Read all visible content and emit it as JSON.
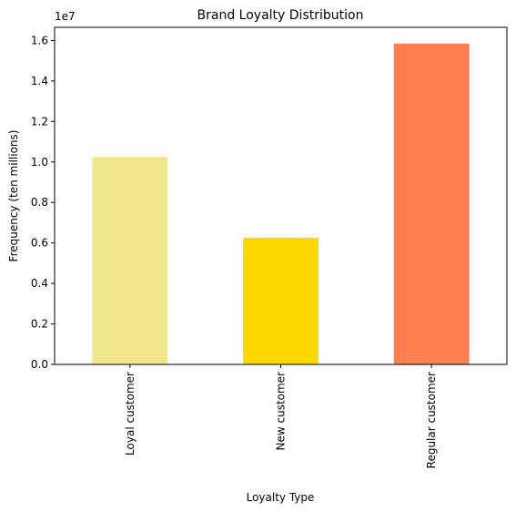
{
  "chart_data": {
    "type": "bar",
    "title": "Brand Loyalty Distribution",
    "xlabel": "Loyalty Type",
    "ylabel": "Frequency (ten millions)",
    "y_multiplier_label": "1e7",
    "categories": [
      "Loyal customer",
      "New customer",
      "Regular customer"
    ],
    "values": [
      10250000,
      6250000,
      15850000
    ],
    "colors": [
      "#f0e68c",
      "#ffd700",
      "#ff7f50"
    ],
    "ylim": [
      0,
      16650000
    ],
    "yticks": [
      0,
      2000000,
      4000000,
      6000000,
      8000000,
      10000000,
      12000000,
      14000000,
      16000000
    ],
    "ytick_labels": [
      "0.0",
      "0.2",
      "0.4",
      "0.6",
      "0.8",
      "1.0",
      "1.2",
      "1.4",
      "1.6"
    ],
    "grid": false,
    "legend": false
  }
}
